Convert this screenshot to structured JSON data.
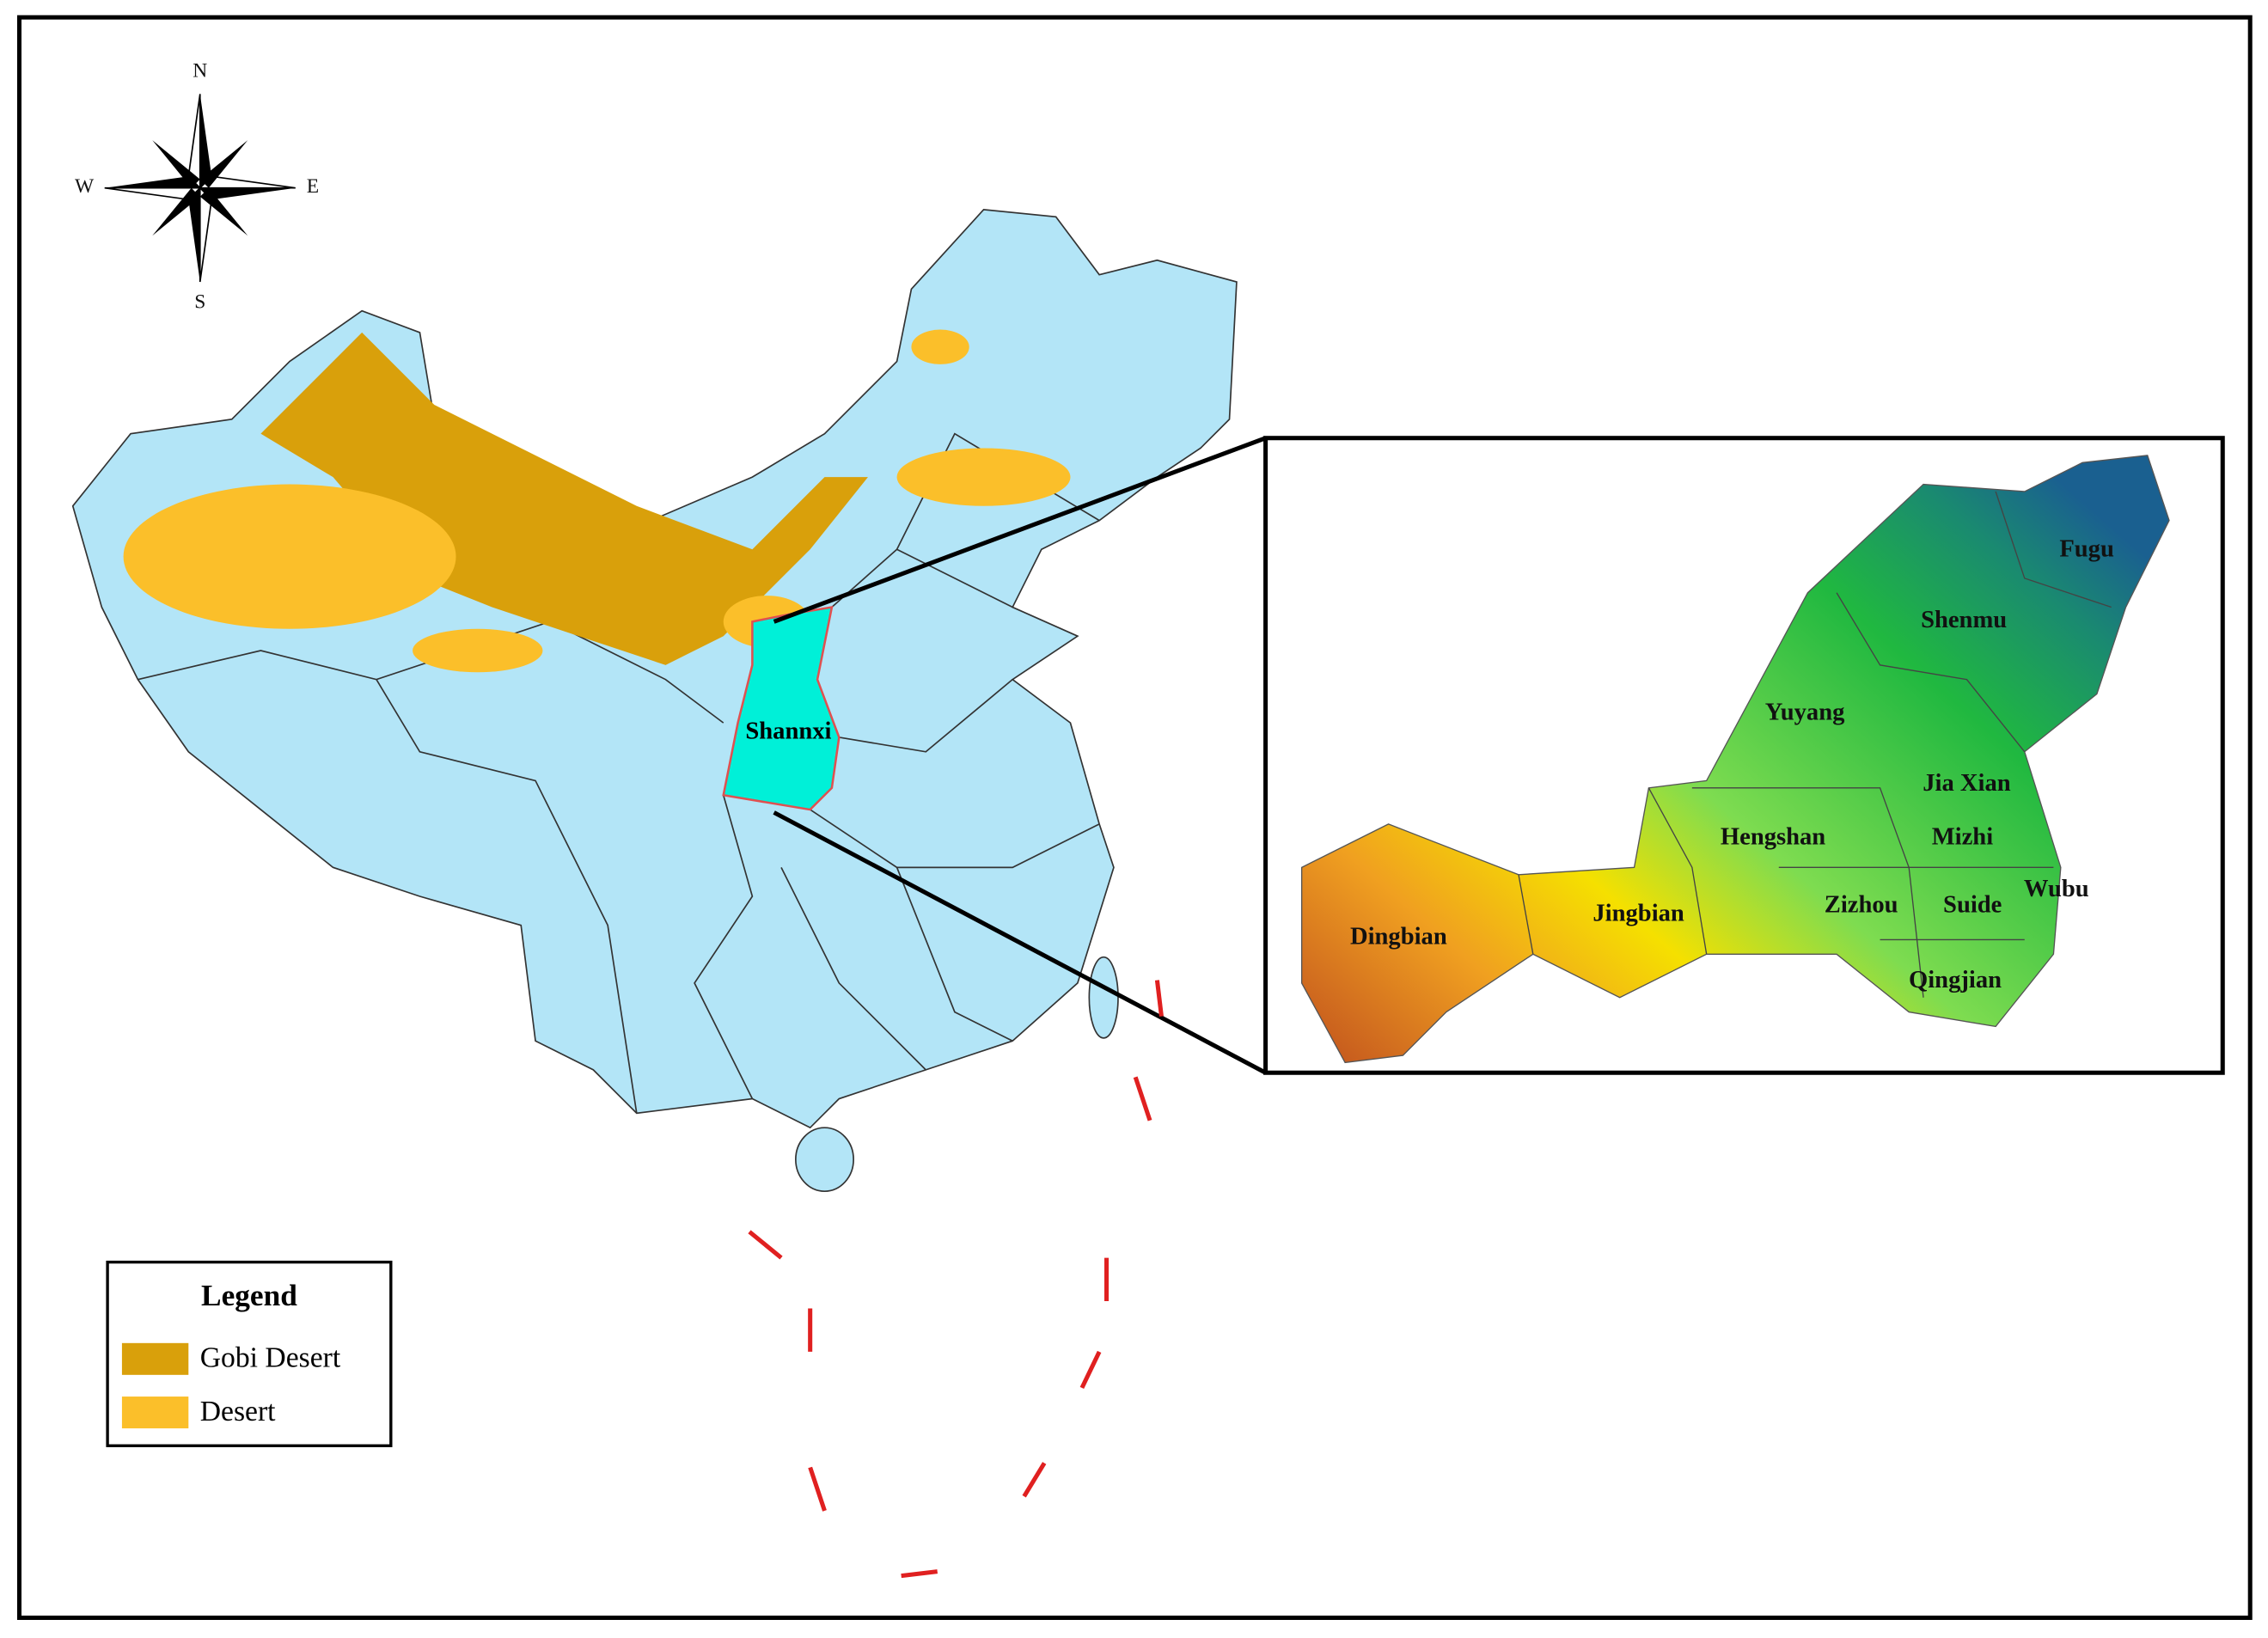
{
  "compass": {
    "north": "N",
    "south": "S",
    "west": "W",
    "east": "E"
  },
  "map": {
    "province_label": "Shannxi"
  },
  "inset": {
    "counties": [
      "Fugu",
      "Shenmu",
      "Yuyang",
      "Jia Xian",
      "Hengshan",
      "Mizhi",
      "Wubu",
      "Suide",
      "Zizhou",
      "Jingbian",
      "Dingbian",
      "Qingjian"
    ]
  },
  "legend": {
    "title": "Legend",
    "items": [
      {
        "label": "Gobi Desert",
        "color": "#d9a00b"
      },
      {
        "label": "Desert",
        "color": "#fbbf2a"
      }
    ]
  }
}
